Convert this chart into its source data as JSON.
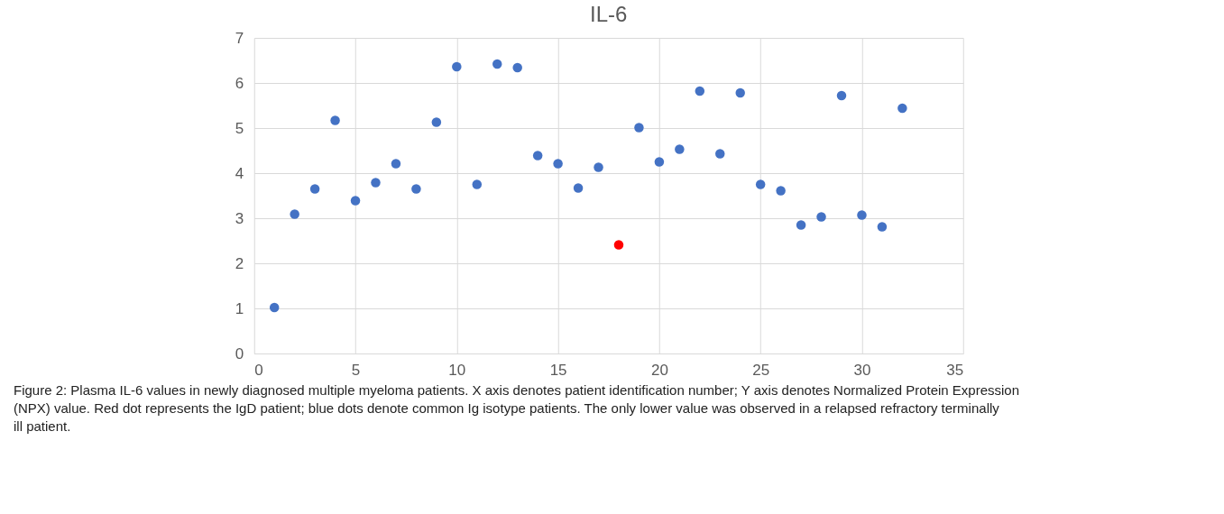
{
  "chart_data": {
    "type": "scatter",
    "title": "IL-6",
    "series": [
      {
        "color": "#4472c4",
        "x": [
          1,
          2,
          3,
          4,
          5,
          6,
          7,
          8,
          9,
          10,
          11,
          12,
          13,
          14,
          15,
          16,
          17,
          19,
          20,
          21,
          22,
          23,
          24,
          25,
          26,
          27,
          28,
          29,
          30,
          31,
          32
        ],
        "values": [
          1.02,
          3.09,
          3.65,
          5.17,
          3.39,
          3.79,
          4.21,
          3.65,
          5.13,
          6.36,
          3.75,
          6.42,
          6.34,
          4.39,
          4.21,
          3.67,
          4.13,
          5.01,
          4.25,
          4.53,
          5.82,
          4.43,
          5.78,
          3.75,
          3.61,
          2.85,
          3.03,
          5.72,
          3.07,
          2.81,
          5.44
        ]
      },
      {
        "color": "#ff0000",
        "x": [
          18
        ],
        "values": [
          2.41
        ]
      }
    ],
    "xlim": [
      0,
      35
    ],
    "xticks": [
      0,
      5,
      10,
      15,
      20,
      25,
      30,
      35
    ],
    "ylim": [
      0,
      7
    ],
    "yticks": [
      0,
      1,
      2,
      3,
      4,
      5,
      6,
      7
    ],
    "grid": true,
    "marker": "circle",
    "annotations": [
      "Figure 2: Plasma IL-6 values in newly diagnosed multiple myeloma patients. X axis denotes patient identification number; Y axis denotes Normalized Protein Expression (NPX) value. Red dot represents the IgD patient; blue dots denote common Ig isotype patients. The only lower value was observed in a relapsed refractory terminally ill patient."
    ]
  }
}
